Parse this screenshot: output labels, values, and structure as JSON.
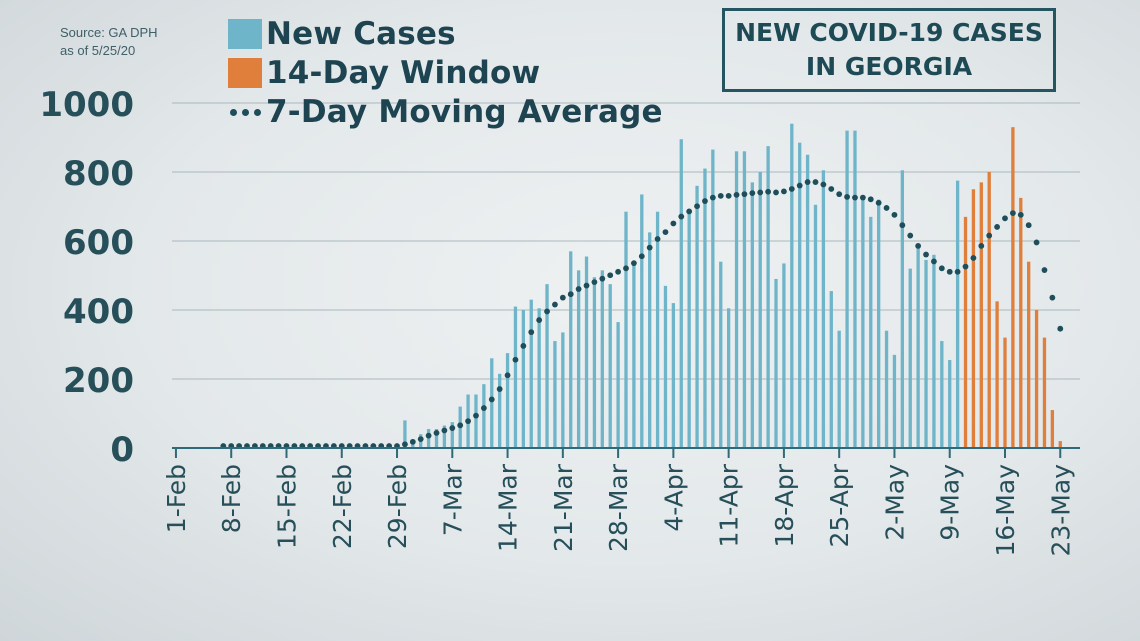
{
  "source": {
    "line1": "Source: GA DPH",
    "line2": "as of 5/25/20"
  },
  "title": {
    "line1": "NEW COVID-19 CASES",
    "line2": "IN GEORGIA"
  },
  "legend": [
    {
      "label": "New Cases",
      "kind": "bar",
      "color": "#6fb5c9"
    },
    {
      "label": "14-Day Window",
      "kind": "bar",
      "color": "#e07f3c"
    },
    {
      "label": "7-Day Moving Average",
      "kind": "dots",
      "color": "#1e4e5a"
    }
  ],
  "chart_data": {
    "type": "bar",
    "ylim": [
      0,
      1000
    ],
    "yticks": [
      0,
      200,
      400,
      600,
      800,
      1000
    ],
    "grid": true,
    "legend_position": "top-left",
    "start_date": "2020-02-01",
    "xtick_labels": [
      "1-Feb",
      "8-Feb",
      "15-Feb",
      "22-Feb",
      "29-Feb",
      "7-Mar",
      "14-Mar",
      "21-Mar",
      "28-Mar",
      "4-Apr",
      "11-Apr",
      "18-Apr",
      "25-Apr",
      "2-May",
      "9-May",
      "16-May",
      "23-May"
    ],
    "colors": {
      "new_cases": "#6fb5c9",
      "window": "#e07f3c",
      "average": "#1e4e5a"
    },
    "series": [
      {
        "name": "New Cases",
        "values": [
          0,
          0,
          0,
          0,
          0,
          0,
          0,
          0,
          0,
          0,
          0,
          0,
          0,
          0,
          0,
          0,
          0,
          0,
          0,
          0,
          0,
          0,
          0,
          0,
          0,
          0,
          0,
          0,
          2,
          80,
          25,
          40,
          55,
          55,
          65,
          75,
          120,
          155,
          155,
          185,
          260,
          215,
          275,
          410,
          400,
          430,
          405,
          475,
          310,
          335,
          570,
          515,
          555,
          495,
          515,
          475,
          365,
          685,
          540,
          735,
          625,
          685,
          470,
          420,
          895,
          690,
          760,
          810,
          865,
          540,
          405,
          860,
          860,
          770,
          800,
          875,
          490,
          535,
          940,
          885,
          850,
          705,
          805,
          455,
          340,
          920,
          920,
          725,
          670,
          720,
          340,
          270,
          805,
          520,
          585,
          545,
          560,
          310,
          255,
          775
        ],
        "color": "#6fb5c9"
      },
      {
        "name": "14-Day Window",
        "start_index": 100,
        "values": [
          670,
          750,
          770,
          800,
          425,
          320,
          930,
          725,
          540,
          400,
          320,
          110,
          20
        ],
        "color": "#e07f3c"
      },
      {
        "name": "7-Day Moving Average",
        "values": [
          0,
          0,
          0,
          0,
          0,
          0,
          0,
          0,
          0,
          0,
          0,
          0,
          0,
          0,
          0,
          0,
          0,
          0,
          0,
          0,
          0,
          0,
          0,
          0,
          0,
          0,
          0,
          0,
          0,
          5,
          12,
          20,
          30,
          38,
          45,
          52,
          60,
          72,
          88,
          110,
          135,
          165,
          205,
          250,
          290,
          330,
          365,
          390,
          410,
          430,
          440,
          455,
          465,
          475,
          485,
          495,
          505,
          515,
          530,
          550,
          575,
          600,
          620,
          645,
          665,
          680,
          695,
          710,
          720,
          725,
          725,
          728,
          730,
          733,
          735,
          737,
          735,
          738,
          745,
          755,
          765,
          765,
          758,
          745,
          730,
          722,
          720,
          720,
          715,
          705,
          690,
          670,
          640,
          610,
          580,
          555,
          535,
          515,
          505,
          505,
          520,
          545,
          580,
          610,
          635,
          660,
          675,
          670,
          640,
          590,
          510,
          430,
          340
        ]
      }
    ]
  }
}
